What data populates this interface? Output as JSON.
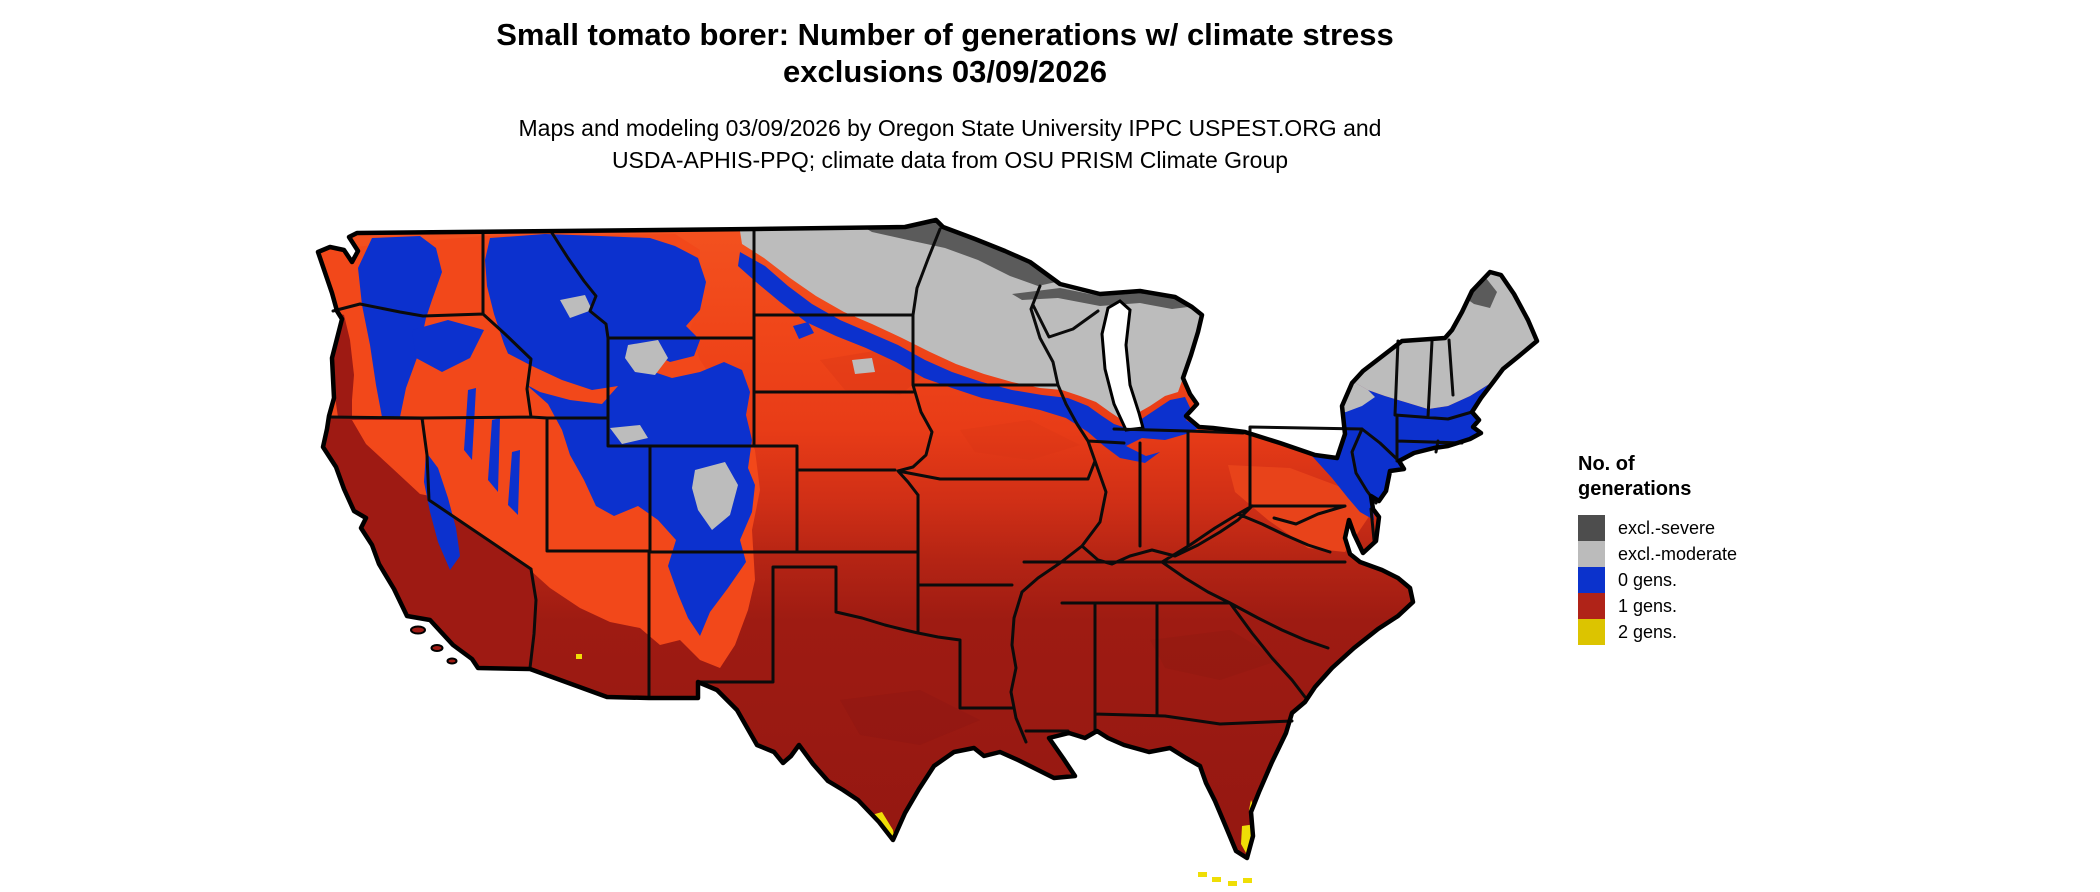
{
  "header": {
    "title_line1": "Small tomato borer: Number of generations w/ climate stress",
    "title_line2": "exclusions 03/09/2026",
    "subtitle_line1": "Maps and modeling 03/09/2026 by Oregon State University IPPC USPEST.ORG and",
    "subtitle_line2": "USDA-APHIS-PPQ; climate data from OSU PRISM Climate Group"
  },
  "legend": {
    "title_line1": "No. of",
    "title_line2": "generations",
    "items": [
      {
        "label": "excl.-severe",
        "color": "#4D4D4D"
      },
      {
        "label": "excl.-moderate",
        "color": "#BBBBBB"
      },
      {
        "label": "0 gens.",
        "color": "#0B32CC"
      },
      {
        "label": "1 gens.",
        "color": "#B02318"
      },
      {
        "label": "2 gens.",
        "color": "#DCC400"
      }
    ]
  },
  "map": {
    "colors": {
      "excl_severe": "#5B5B5B",
      "excl_moderate": "#BCBCBC",
      "zero_gens_blue": "#0C31CE",
      "one_gen_orange_low": "#F2481A",
      "one_gen_dark_red": "#9E1A13",
      "two_gens_yellow": "#EFDE06",
      "state_border": "#0b0b0b",
      "water_white": "#ffffff"
    },
    "region_notes": {
      "gray_north": "excl.-moderate across ND/MN/WI/MI and northern New England",
      "dark_gray_fringe": "excl.-severe along Canadian border and north Maine",
      "blue_regions": "0 gens. in Cascades, Rockies, Sierra, upper-midwest band, Northeast",
      "orange_band": "low 1-gen zone across Pacific NW interior and central plains",
      "dark_red_south": "1 gen. across southern half of US",
      "yellow_tips": "2 gens. in far south Texas and south Florida"
    }
  }
}
